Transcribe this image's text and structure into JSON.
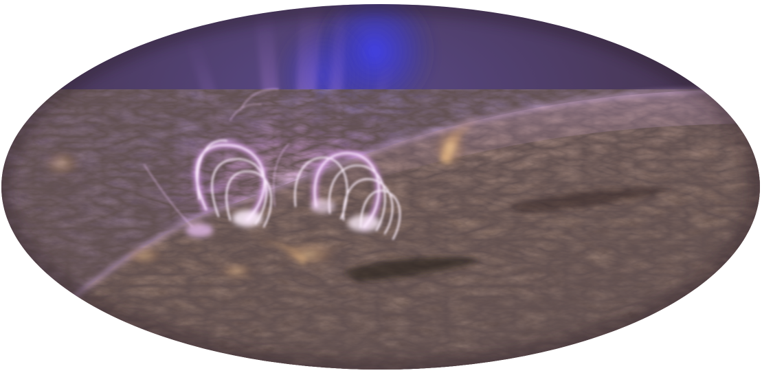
{
  "image": {
    "subject": "solar-flare-coronal-loops",
    "shape": "ellipse",
    "colors": {
      "background": "#ffffff",
      "space_dark": "#3a2a3c",
      "space_violet": "#4b3a6e",
      "blue_glow": "#3d3dd8",
      "plasma_magenta": "#e07cf0",
      "loop_white": "#fbe9ff",
      "surface_brown": "#5a4335",
      "surface_tan": "#b99070",
      "surface_dark": "#2e2320",
      "golden_jet": "#e8b070"
    }
  }
}
